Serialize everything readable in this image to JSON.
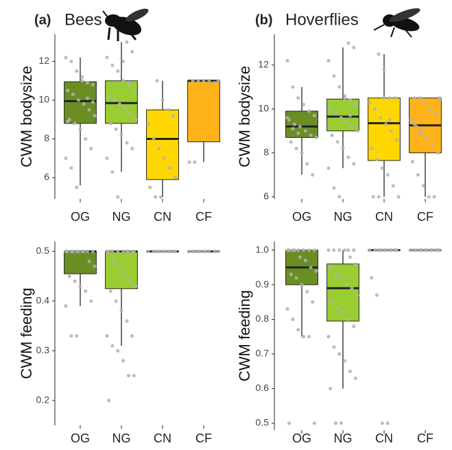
{
  "chart_data": [
    {
      "type": "box",
      "panel_label": "(a)",
      "title": "Bees",
      "ylabel": "CWM bodysize",
      "categories": [
        "OG",
        "NG",
        "CN",
        "CF"
      ],
      "colors": [
        "#6b8e23",
        "#9acd32",
        "#ffd700",
        "#ffb31a"
      ],
      "whisker_low": [
        5.6,
        6.3,
        5.0,
        6.8
      ],
      "q1": [
        8.8,
        8.8,
        5.9,
        7.85
      ],
      "median": [
        9.95,
        9.85,
        8.0,
        11.0
      ],
      "q3": [
        10.95,
        11.0,
        9.5,
        11.0
      ],
      "whisker_high": [
        12.2,
        13.0,
        11.0,
        11.0
      ],
      "points": [
        [
          12.2,
          12.0,
          11.5,
          11.0,
          10.9,
          10.8,
          10.5,
          10.3,
          10.0,
          9.8,
          9.5,
          9.2,
          9.0,
          8.8,
          8.5,
          8.0,
          7.5,
          7.0,
          6.5,
          5.5,
          11.2,
          10.1,
          9.9,
          8.9
        ],
        [
          13.0,
          12.5,
          12.2,
          11.8,
          11.5,
          11.0,
          10.8,
          10.5,
          10.2,
          10.0,
          9.8,
          9.6,
          9.3,
          9.0,
          8.8,
          8.5,
          8.2,
          7.8,
          7.5,
          7.0,
          6.3,
          5.0,
          12.0,
          10.9
        ],
        [
          11.0,
          10.0,
          9.5,
          9.2,
          8.8,
          8.0,
          7.5,
          7.0,
          6.5,
          6.0,
          5.5,
          5.0,
          5.0
        ],
        [
          11.0,
          11.0,
          11.0,
          11.0,
          11.0,
          10.9,
          6.8,
          6.8
        ]
      ],
      "ylim": [
        4.9,
        13.4
      ],
      "yticks": [
        6,
        8,
        10,
        12
      ]
    },
    {
      "type": "box",
      "panel_label": "(b)",
      "title": "Hoverflies",
      "ylabel": "CWM bodysize",
      "categories": [
        "OG",
        "NG",
        "CN",
        "CF"
      ],
      "colors": [
        "#6b8e23",
        "#9acd32",
        "#ffd700",
        "#ffb31a"
      ],
      "whisker_low": [
        7.0,
        7.3,
        6.0,
        6.0
      ],
      "q1": [
        8.7,
        9.0,
        7.65,
        8.0
      ],
      "median": [
        9.2,
        9.65,
        9.35,
        9.25
      ],
      "q3": [
        9.9,
        10.45,
        10.5,
        10.5
      ],
      "whisker_high": [
        11.0,
        12.8,
        12.5,
        10.5
      ],
      "points": [
        [
          12.2,
          11.0,
          10.5,
          10.2,
          9.9,
          9.7,
          9.5,
          9.3,
          9.2,
          9.0,
          8.8,
          8.7,
          8.5,
          8.2,
          8.0,
          7.5,
          7.0,
          9.6,
          9.1,
          8.9
        ],
        [
          13.0,
          12.8,
          12.2,
          11.5,
          11.0,
          10.6,
          10.4,
          10.2,
          10.0,
          9.8,
          9.6,
          9.4,
          9.2,
          9.0,
          8.8,
          8.5,
          8.2,
          7.8,
          7.5,
          7.3,
          6.4,
          6.0,
          10.5,
          9.7
        ],
        [
          12.5,
          11.8,
          10.5,
          10.5,
          10.3,
          10.0,
          9.6,
          9.3,
          9.0,
          8.6,
          8.2,
          7.7,
          7.3,
          7.0,
          6.5,
          6.0,
          6.0,
          6.0,
          10.5,
          9.5
        ],
        [
          10.5,
          10.5,
          10.5,
          10.3,
          10.0,
          9.8,
          9.5,
          9.2,
          9.0,
          8.7,
          8.3,
          8.0,
          7.6,
          7.0,
          6.5,
          6.0,
          6.0,
          10.4,
          9.3,
          8.9
        ]
      ],
      "ylim": [
        5.9,
        13.4
      ],
      "yticks": [
        6,
        8,
        10,
        12
      ]
    },
    {
      "type": "box",
      "ylabel": "CWM feeding",
      "categories": [
        "OG",
        "NG",
        "CN",
        "CF"
      ],
      "colors": [
        "#6b8e23",
        "#9acd32",
        "#ffd700",
        "#ffb31a"
      ],
      "whisker_low": [
        0.39,
        0.31,
        0.5,
        0.5
      ],
      "q1": [
        0.455,
        0.425,
        0.5,
        0.5
      ],
      "median": [
        0.5,
        0.5,
        0.5,
        0.5
      ],
      "q3": [
        0.5,
        0.5,
        0.5,
        0.5
      ],
      "whisker_high": [
        0.5,
        0.5,
        0.5,
        0.5
      ],
      "points": [
        [
          0.5,
          0.5,
          0.5,
          0.5,
          0.5,
          0.5,
          0.5,
          0.5,
          0.5,
          0.5,
          0.48,
          0.47,
          0.45,
          0.44,
          0.43,
          0.42,
          0.4,
          0.39,
          0.33,
          0.33
        ],
        [
          0.5,
          0.5,
          0.5,
          0.5,
          0.5,
          0.5,
          0.5,
          0.5,
          0.5,
          0.48,
          0.47,
          0.45,
          0.44,
          0.43,
          0.42,
          0.4,
          0.38,
          0.36,
          0.33,
          0.33,
          0.31,
          0.3,
          0.28,
          0.25,
          0.25,
          0.2
        ],
        [
          0.5,
          0.5,
          0.5,
          0.5,
          0.5,
          0.5,
          0.5,
          0.5,
          0.5,
          0.5
        ],
        [
          0.5,
          0.5,
          0.5,
          0.5,
          0.5,
          0.5,
          0.5,
          0.5,
          0.5,
          0.5
        ]
      ],
      "ylim": [
        0.15,
        0.52
      ],
      "yticks": [
        0.2,
        0.3,
        0.4,
        0.5
      ]
    },
    {
      "type": "box",
      "ylabel": "CWM feeding",
      "categories": [
        "OG",
        "NG",
        "CN",
        "CF"
      ],
      "colors": [
        "#6b8e23",
        "#9acd32",
        "#ffd700",
        "#ffb31a"
      ],
      "whisker_low": [
        0.75,
        0.6,
        1.0,
        1.0
      ],
      "q1": [
        0.9,
        0.795,
        1.0,
        1.0
      ],
      "median": [
        0.95,
        0.89,
        1.0,
        1.0
      ],
      "q3": [
        1.0,
        0.96,
        1.0,
        1.0
      ],
      "whisker_high": [
        1.0,
        1.0,
        1.0,
        1.0
      ],
      "points": [
        [
          1,
          1,
          1,
          1,
          1,
          1,
          1,
          1,
          0.98,
          0.97,
          0.95,
          0.94,
          0.93,
          0.92,
          0.9,
          0.88,
          0.85,
          0.83,
          0.8,
          0.77,
          0.75,
          0.75,
          0.5,
          0.5
        ],
        [
          1,
          1,
          1,
          1,
          1,
          1,
          0.98,
          0.96,
          0.95,
          0.93,
          0.92,
          0.9,
          0.89,
          0.87,
          0.85,
          0.83,
          0.82,
          0.8,
          0.78,
          0.75,
          0.72,
          0.7,
          0.68,
          0.65,
          0.63,
          0.6,
          0.5,
          0.5
        ],
        [
          1,
          1,
          1,
          1,
          1,
          1,
          1,
          1,
          1,
          1,
          0.92,
          0.87,
          0.5,
          0.5
        ],
        [
          1,
          1,
          1,
          1,
          1,
          1,
          1,
          1,
          1,
          1,
          1,
          1
        ]
      ],
      "ylim": [
        0.48,
        1.025
      ],
      "yticks": [
        0.5,
        0.6,
        0.7,
        0.8,
        0.9,
        {
          "value": 1,
          "label": "1.0"
        }
      ]
    }
  ]
}
